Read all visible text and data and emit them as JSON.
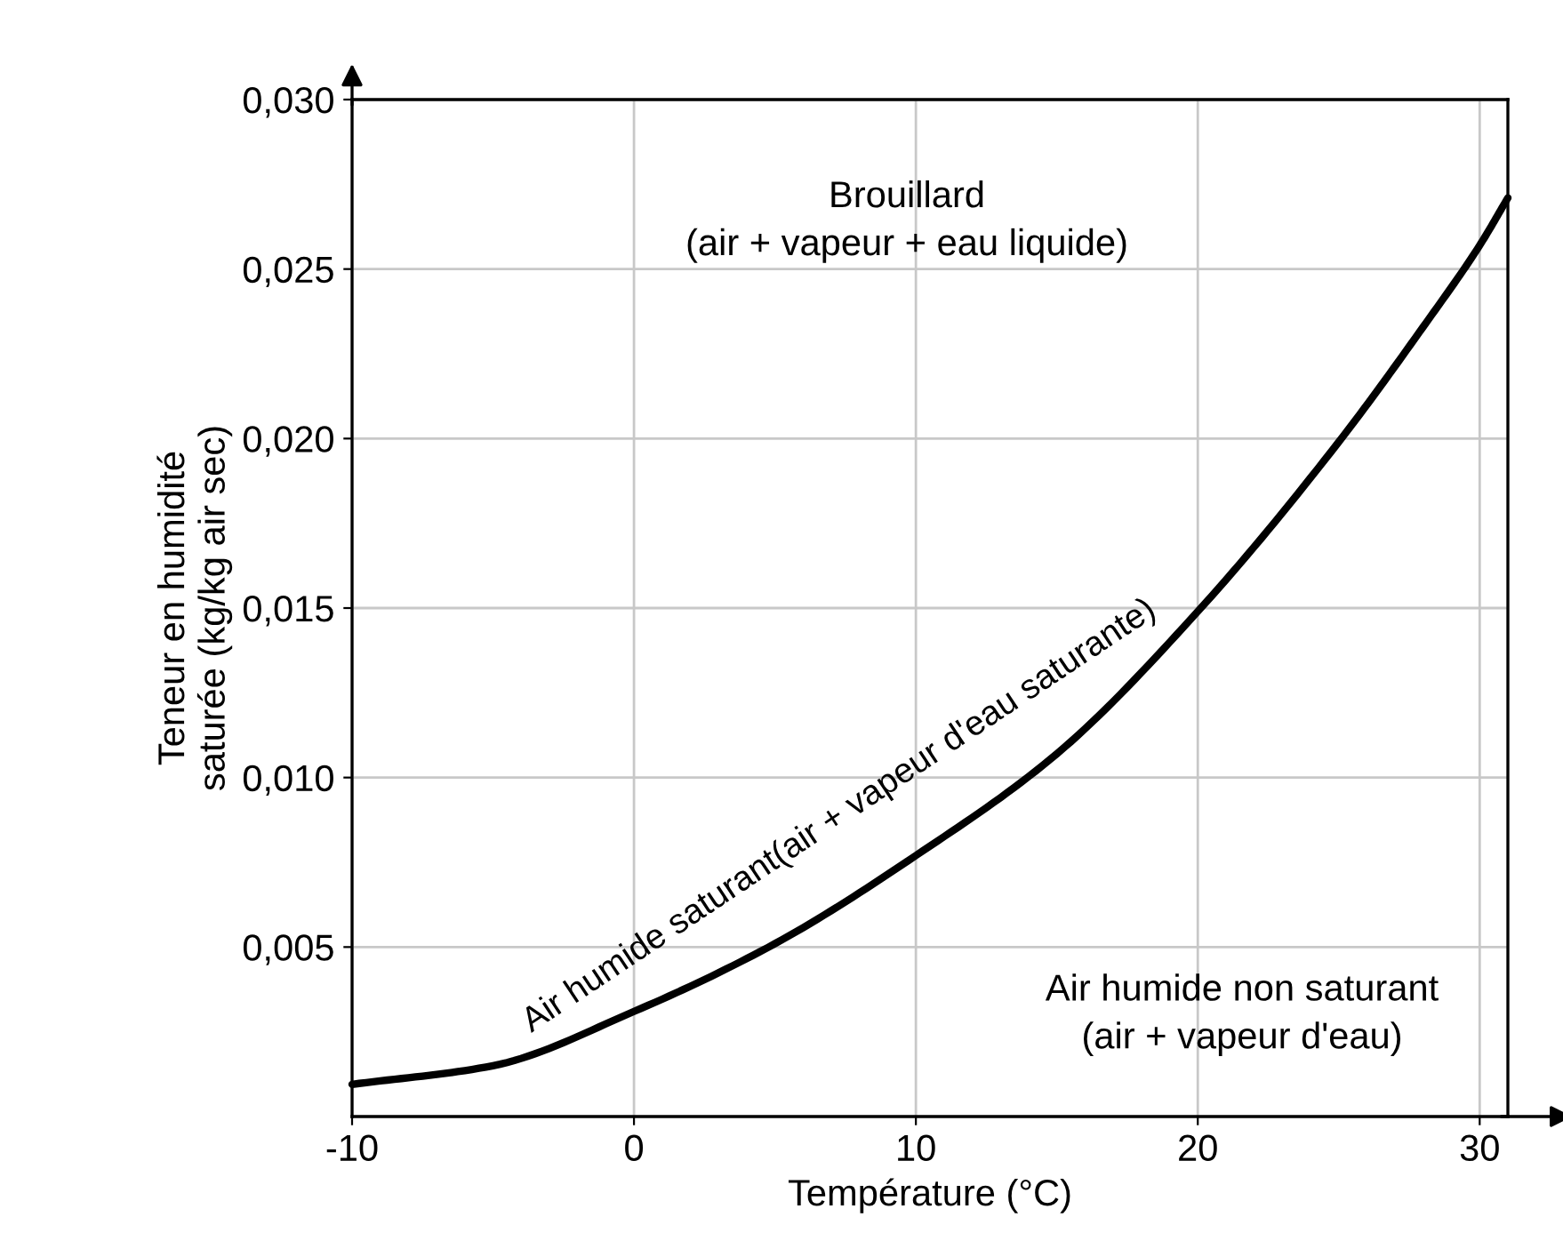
{
  "chart_data": {
    "type": "line",
    "xlabel": "Température (°C)",
    "ylabel": "Teneur en humidité\nsaturée (kg/kg air sec)",
    "x": [
      -10,
      -5,
      0,
      5,
      10,
      15,
      20,
      25,
      28,
      30,
      31
    ],
    "series": [
      {
        "color": "#000000",
        "values": [
          0.00095,
          0.0015,
          0.0031,
          0.0051,
          0.0077,
          0.0107,
          0.0149,
          0.0199,
          0.0233,
          0.0257,
          0.0271
        ]
      }
    ],
    "xlim": [
      -10,
      31
    ],
    "ylim": [
      0,
      0.03
    ],
    "xticks": [
      -10,
      0,
      10,
      20,
      30
    ],
    "yticks": [
      {
        "value": 0.005,
        "label": "0,005"
      },
      {
        "value": 0.01,
        "label": "0,010"
      },
      {
        "value": 0.015,
        "label": "0,015"
      },
      {
        "value": 0.02,
        "label": "0,020"
      },
      {
        "value": 0.025,
        "label": "0,025"
      },
      {
        "value": 0.03,
        "label": "0,030"
      }
    ],
    "grid": true,
    "marker": "none",
    "line_style": "solid",
    "annotations": [
      "Brouillard\n(air + vapeur + eau liquide)",
      "Air humide saturant(air + vapeur d'eau saturante)",
      "Air humide non saturant\n(air + vapeur d'eau)"
    ]
  }
}
